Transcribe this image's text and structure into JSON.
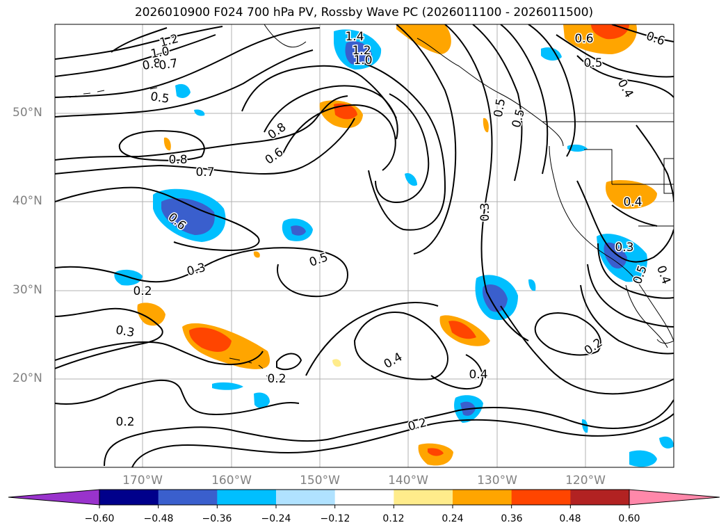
{
  "title": "2026010900 F024 700 hPa PV, Rossby Wave PC (2026011100 - 2026011500)",
  "lat_labels": [
    "50°N",
    "40°N",
    "30°N",
    "20°N"
  ],
  "lon_labels": [
    "170°W",
    "160°W",
    "150°W",
    "140°W",
    "130°W",
    "120°W"
  ],
  "contour_labels": [
    "1.2",
    "1.4",
    "1.2",
    "1.0",
    "1.0",
    "0.8",
    "0.7",
    "0.5",
    "0.8",
    "0.8",
    "0.6",
    "0.7",
    "0.6",
    "0.5",
    "0.3",
    "0.2",
    "0.3",
    "0.2",
    "0.2",
    "0.2",
    "0.4",
    "0.4",
    "0.3",
    "0.6",
    "0.5",
    "0.4",
    "0.5",
    "0.5",
    "0.5",
    "0.4",
    "0.3",
    "0.2",
    "0.6",
    "0.4"
  ],
  "colorbar": {
    "ticks": [
      "−0.60",
      "−0.48",
      "−0.36",
      "−0.24",
      "−0.12",
      "0.12",
      "0.24",
      "0.36",
      "0.48",
      "0.60"
    ],
    "colors": [
      "#9933cc",
      "#00008b",
      "#3a5fcd",
      "#00bfff",
      "#b0e2ff",
      "#ffffff",
      "#ffec8b",
      "#ffa500",
      "#ff4500",
      "#b22222",
      "#ff88aa"
    ]
  }
}
